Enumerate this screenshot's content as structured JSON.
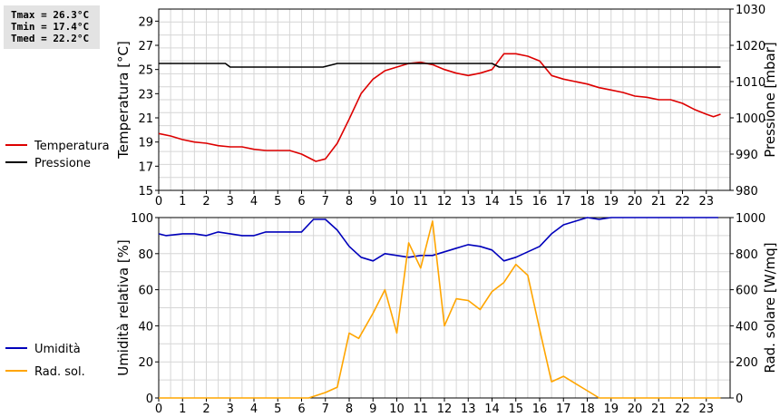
{
  "stats": {
    "tmax": "Tmax = 26.3°C",
    "tmin": "Tmin = 17.4°C",
    "tmed": "Tmed = 22.2°C"
  },
  "chart_data": [
    {
      "type": "line",
      "ylabel": "Temperatura [°C]",
      "y2label": "Pressione [mbar]",
      "xlim": [
        0,
        24
      ],
      "x_ticks": [
        "0",
        "1",
        "2",
        "3",
        "4",
        "5",
        "6",
        "7",
        "8",
        "9",
        "10",
        "11",
        "12",
        "13",
        "14",
        "15",
        "16",
        "17",
        "18",
        "19",
        "20",
        "21",
        "22",
        "23"
      ],
      "ylim": [
        15,
        30
      ],
      "y_ticks": [
        "15",
        "17",
        "19",
        "21",
        "23",
        "25",
        "27",
        "29"
      ],
      "y2lim": [
        980,
        1030
      ],
      "y2_ticks": [
        "980",
        "990",
        "1000",
        "1010",
        "1020",
        "1030"
      ],
      "grid": true,
      "legend_position": "left",
      "series": [
        {
          "name": "Temperatura",
          "color": "#dd0000",
          "axis": "left",
          "x": [
            0,
            0.5,
            1,
            1.5,
            2,
            2.5,
            3,
            3.5,
            4,
            4.5,
            5,
            5.5,
            6,
            6.3,
            6.6,
            7,
            7.5,
            8,
            8.5,
            9,
            9.5,
            10,
            10.5,
            11,
            11.5,
            12,
            12.5,
            13,
            13.5,
            14,
            14.5,
            15,
            15.5,
            16,
            16.5,
            17,
            17.5,
            18,
            18.5,
            19,
            19.5,
            20,
            20.5,
            21,
            21.5,
            22,
            22.5,
            23,
            23.3,
            23.6
          ],
          "values": [
            19.7,
            19.5,
            19.2,
            19.0,
            18.9,
            18.7,
            18.6,
            18.6,
            18.4,
            18.3,
            18.3,
            18.3,
            18.0,
            17.7,
            17.4,
            17.6,
            18.9,
            20.9,
            23.0,
            24.2,
            24.9,
            25.2,
            25.5,
            25.6,
            25.4,
            25.0,
            24.7,
            24.5,
            24.7,
            25.0,
            26.3,
            26.3,
            26.1,
            25.7,
            24.5,
            24.2,
            24.0,
            23.8,
            23.5,
            23.3,
            23.1,
            22.8,
            22.7,
            22.5,
            22.5,
            22.2,
            21.7,
            21.3,
            21.1,
            21.3
          ]
        },
        {
          "name": "Pressione",
          "color": "#000000",
          "axis": "right",
          "x": [
            0,
            2.8,
            3.0,
            6.5,
            6.9,
            7.5,
            14.0,
            14.3,
            23.6
          ],
          "values": [
            1015,
            1015,
            1014,
            1014,
            1014,
            1015,
            1015,
            1014,
            1014
          ]
        }
      ]
    },
    {
      "type": "line",
      "ylabel": "Umidità relativa [%]",
      "y2label": "Rad. solare [W/mq]",
      "xlim": [
        0,
        24
      ],
      "x_ticks": [
        "0",
        "1",
        "2",
        "3",
        "4",
        "5",
        "6",
        "7",
        "8",
        "9",
        "10",
        "11",
        "12",
        "13",
        "14",
        "15",
        "16",
        "17",
        "18",
        "19",
        "20",
        "21",
        "22",
        "23"
      ],
      "ylim": [
        0,
        100
      ],
      "y_ticks": [
        "0",
        "20",
        "40",
        "60",
        "80",
        "100"
      ],
      "y2lim": [
        0,
        1000
      ],
      "y2_ticks": [
        "0",
        "200",
        "400",
        "600",
        "800",
        "1000"
      ],
      "grid": true,
      "legend_position": "left",
      "series": [
        {
          "name": "Umidità",
          "color": "#0000bb",
          "axis": "left",
          "x": [
            0,
            0.3,
            1,
            1.5,
            2,
            2.5,
            3,
            3.5,
            4,
            4.5,
            5,
            5.5,
            6,
            6.5,
            7,
            7.5,
            8,
            8.5,
            9,
            9.5,
            10,
            10.5,
            11,
            11.5,
            12,
            12.5,
            13,
            13.5,
            14,
            14.5,
            15,
            15.5,
            16,
            16.5,
            17,
            17.5,
            18,
            18.5,
            19,
            19.5,
            20,
            20.5,
            21,
            21.5,
            22,
            22.5,
            23,
            23.5
          ],
          "values": [
            91,
            90,
            91,
            91,
            90,
            92,
            91,
            90,
            90,
            92,
            92,
            92,
            92,
            99,
            99,
            93,
            84,
            78,
            76,
            80,
            79,
            78,
            79,
            79,
            81,
            83,
            85,
            84,
            82,
            76,
            78,
            81,
            84,
            91,
            96,
            98,
            100,
            99,
            100,
            100,
            100,
            100,
            100,
            100,
            100,
            100,
            100,
            100
          ]
        },
        {
          "name": "Rad. sol.",
          "color": "#ffa500",
          "axis": "right",
          "x": [
            0,
            6.3,
            7.0,
            7.5,
            8.0,
            8.4,
            9.0,
            9.5,
            10.0,
            10.5,
            11.0,
            11.5,
            12.0,
            12.5,
            13.0,
            13.5,
            14.0,
            14.5,
            15.0,
            15.5,
            16.0,
            16.5,
            17.0,
            17.5,
            18.0,
            18.5,
            19,
            20,
            21,
            22,
            23,
            23.6
          ],
          "values": [
            0,
            0,
            30,
            60,
            360,
            330,
            470,
            600,
            360,
            860,
            720,
            980,
            400,
            550,
            540,
            490,
            590,
            640,
            740,
            680,
            380,
            90,
            120,
            80,
            40,
            0,
            0,
            0,
            0,
            0,
            0,
            0
          ]
        }
      ]
    }
  ]
}
